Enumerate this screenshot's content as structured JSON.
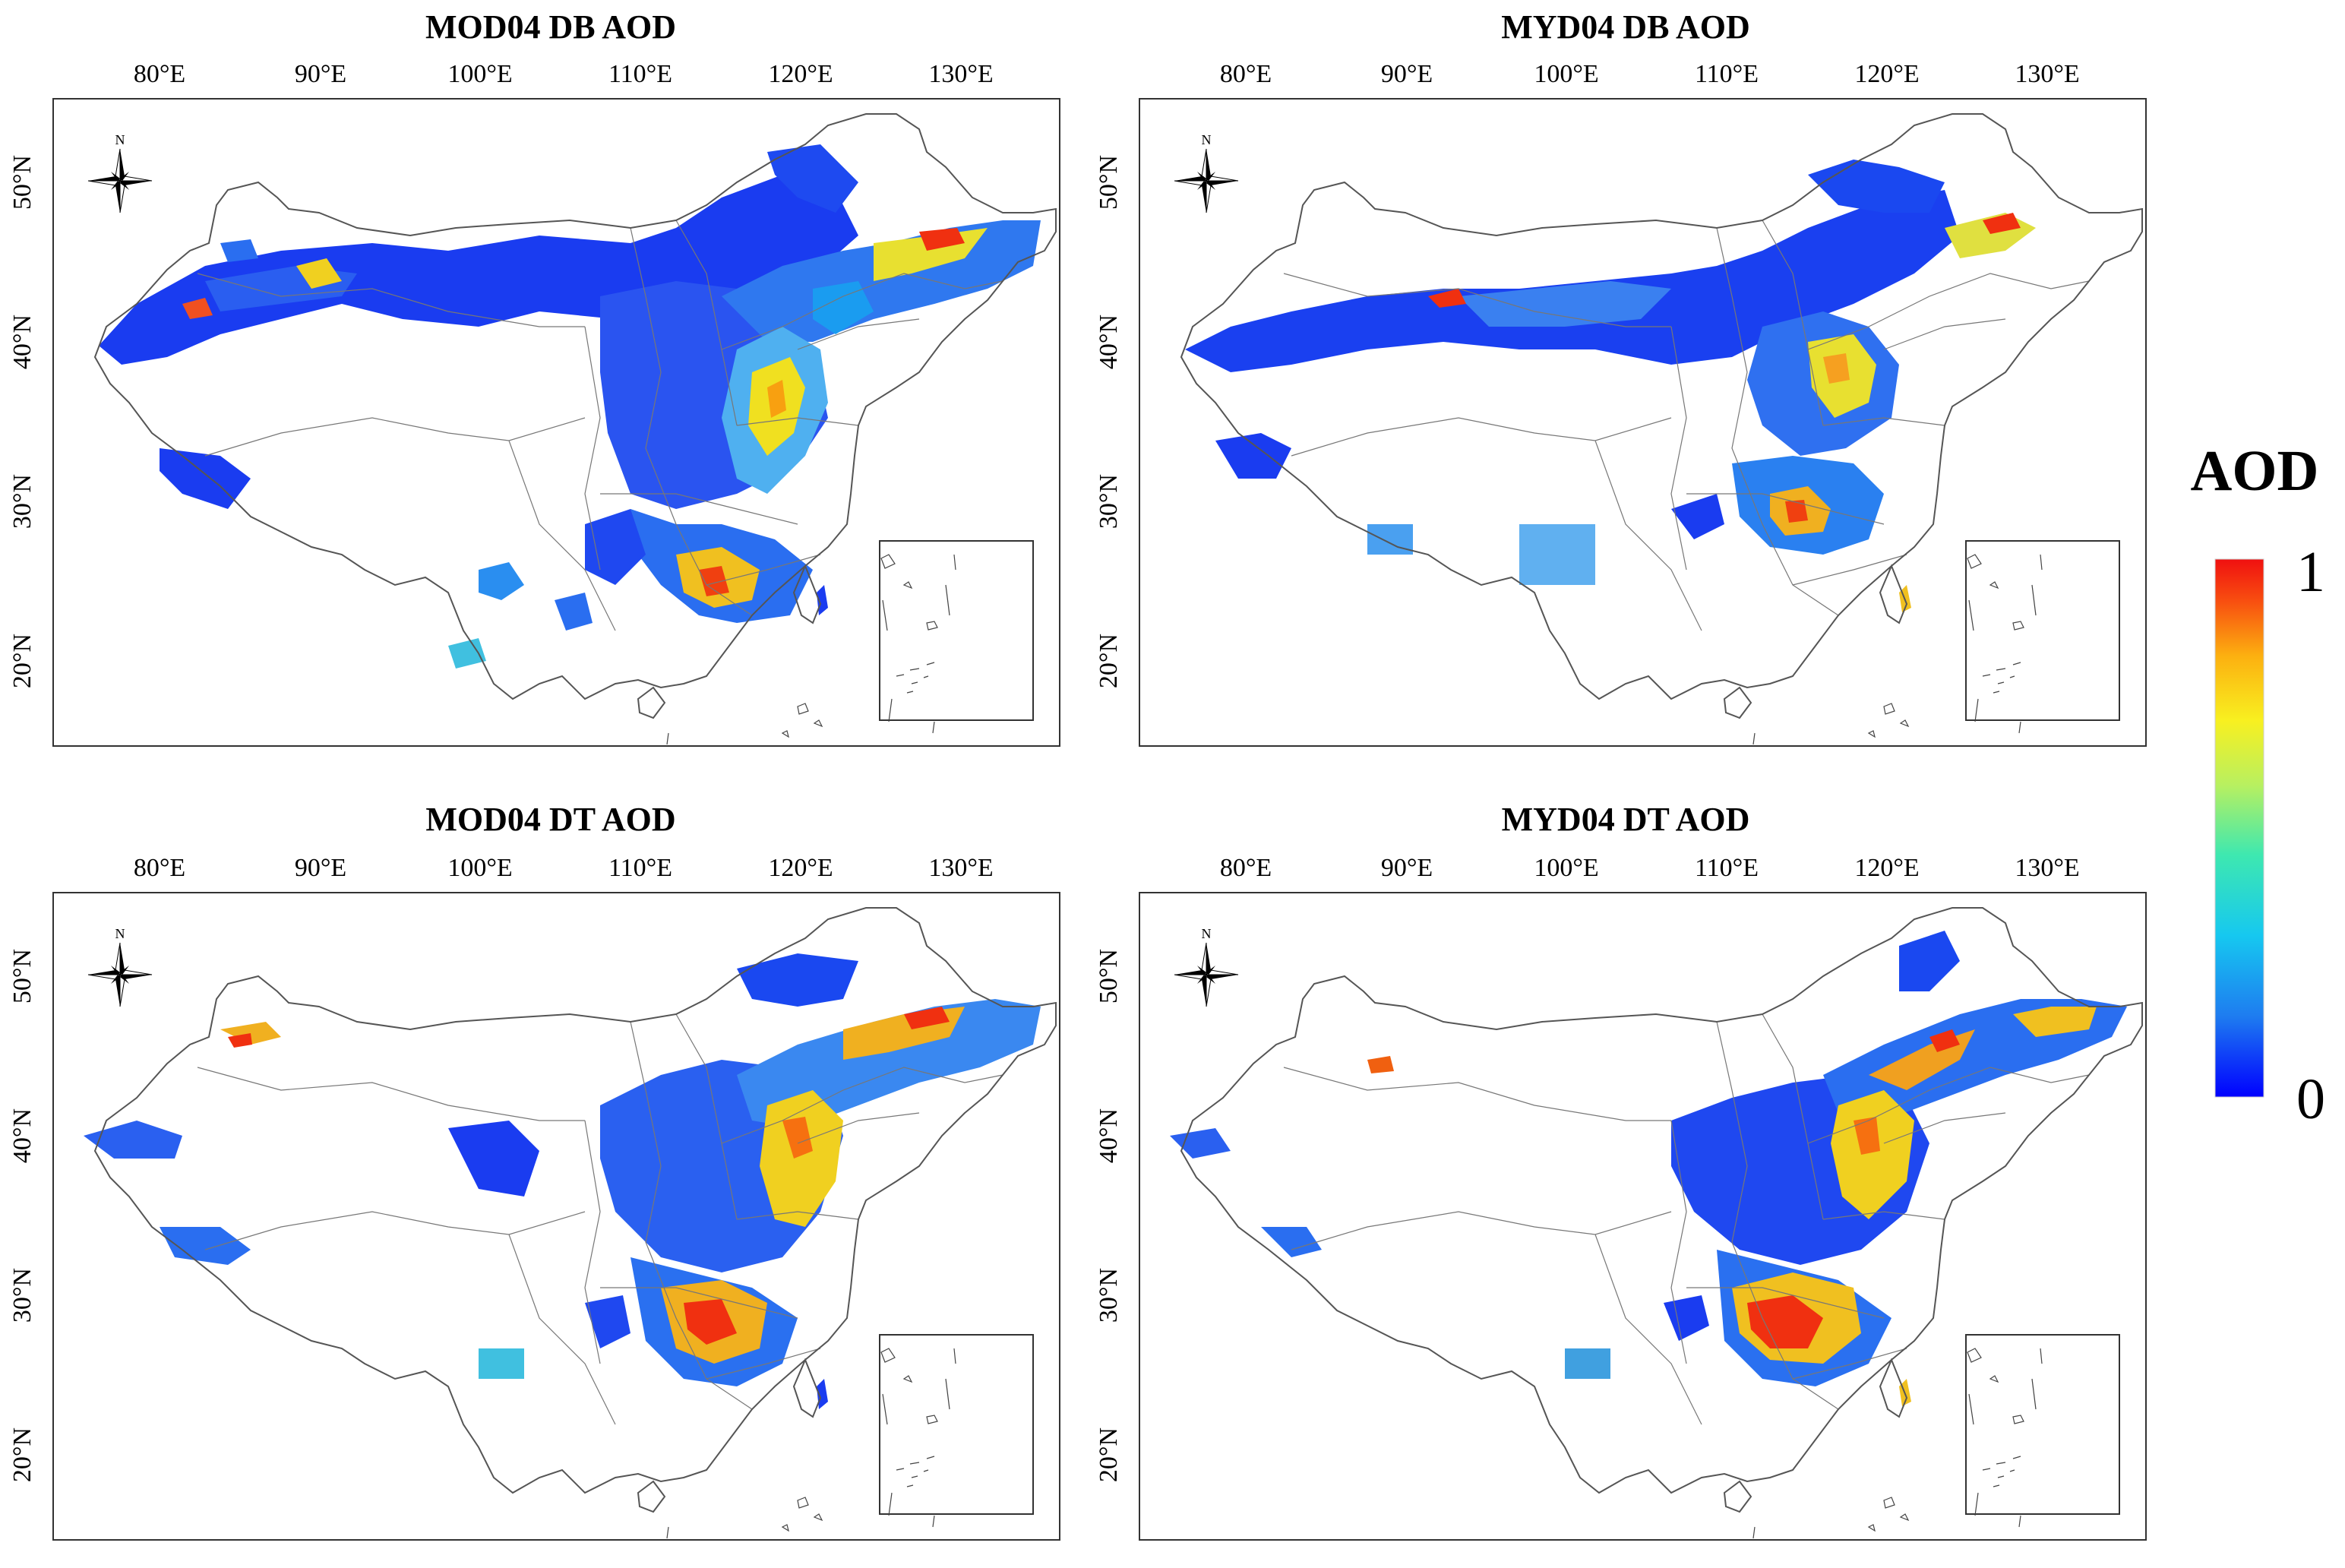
{
  "figure": {
    "panels": [
      {
        "title": "MOD04 DB AOD"
      },
      {
        "title": "MYD04 DB AOD"
      },
      {
        "title": "MOD04 DT AOD"
      },
      {
        "title": "MYD04 DT AOD"
      }
    ],
    "lon_ticks": [
      "80°E",
      "90°E",
      "100°E",
      "110°E",
      "120°E",
      "130°E"
    ],
    "lat_ticks": [
      "50°N",
      "40°N",
      "30°N",
      "20°N"
    ],
    "north_label": "N",
    "colorbar": {
      "title": "AOD",
      "max_label": "1",
      "min_label": "0",
      "colors": [
        "#0000ff",
        "#1e7cf0",
        "#16c8f0",
        "#3ee8b0",
        "#b8f060",
        "#f8f020",
        "#fcb010",
        "#f85010",
        "#f01010"
      ]
    }
  }
}
